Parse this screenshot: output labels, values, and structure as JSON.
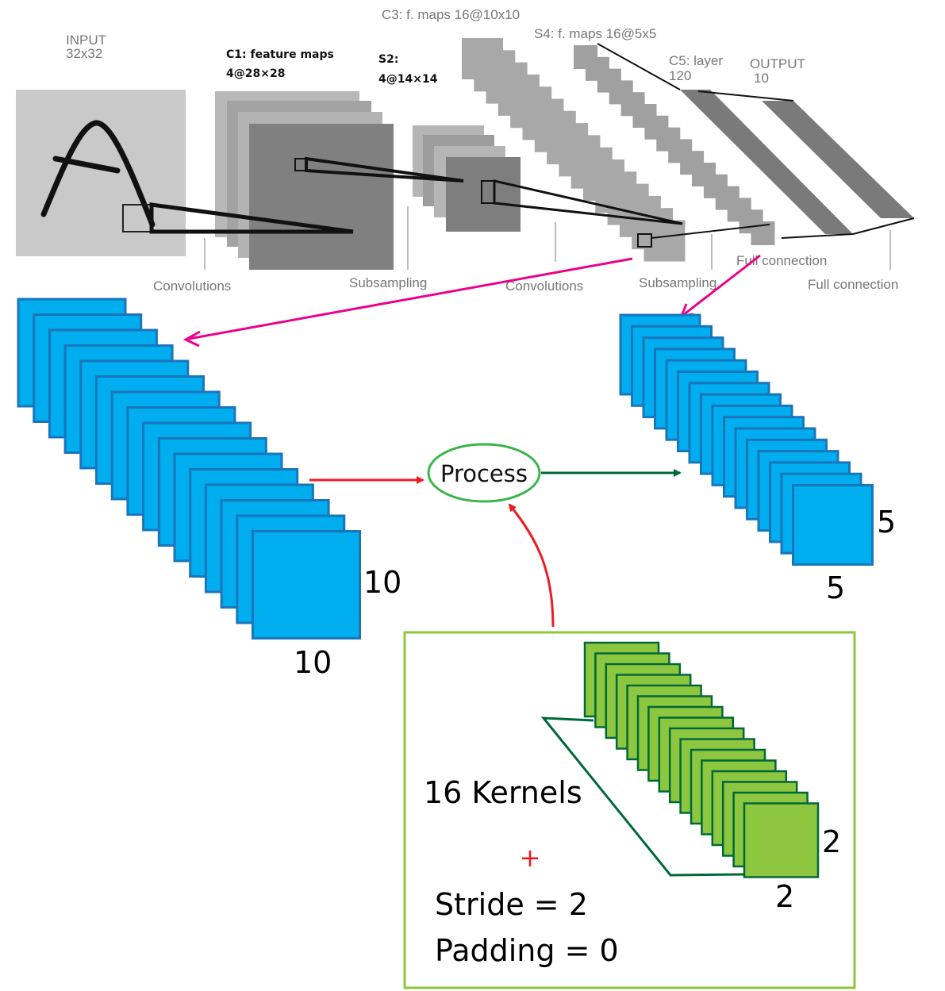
{
  "top_figure": {
    "input_label": "INPUT",
    "input_size": "32x32",
    "c1_label": "C1: feature maps",
    "c1_size": "4@28×28",
    "s2_label": "S2:",
    "s2_size": "4@14×14",
    "c3_label": "C3: f. maps 16@10x10",
    "s4_label": "S4: f. maps 16@5x5",
    "c5_label": "C5: layer",
    "c5_size": "120",
    "output_label": "OUTPUT",
    "output_size": "10",
    "op_convolutions_1": "Convolutions",
    "op_subsampling_1": "Subsampling",
    "op_convolutions_2": "Convolutions",
    "op_subsampling_2": "Subsampling",
    "op_full_connection_1": "Full connection",
    "op_full_connection_2": "Full connection"
  },
  "detail": {
    "input_maps_width": "10",
    "input_maps_height": "10",
    "output_maps_width": "5",
    "output_maps_height": "5",
    "process_label": "Process",
    "kernels_label": "16 Kernels",
    "plus_sign": "+",
    "stride_label": "Stride = 2",
    "padding_label": "Padding = 0",
    "kernel_width": "2",
    "kernel_height": "2"
  },
  "colors": {
    "feature_map_blue": "#00adef",
    "feature_map_border": "#1b75bb",
    "kernel_green": "#8dc63f",
    "kernel_border": "#006838",
    "box_border": "#8dc63f",
    "process_ellipse": "#39b54a",
    "arrow_red": "#ed1c24",
    "arrow_green": "#006838",
    "arrow_magenta": "#ec008c",
    "lenet_gray": "#8a8a8a"
  }
}
